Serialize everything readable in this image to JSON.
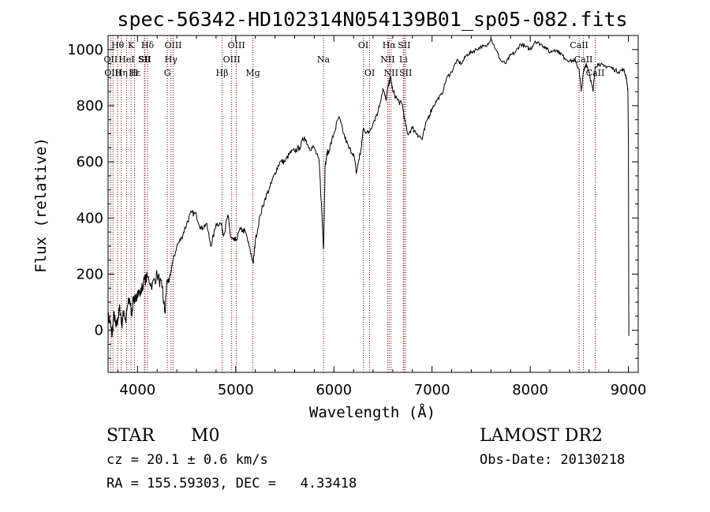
{
  "chart_data": {
    "type": "line",
    "title": "spec-56342-HD102314N054139B01_sp05-082.fits",
    "xlabel": "Wavelength (Å)",
    "ylabel": "Flux (relative)",
    "xlim": [
      3700,
      9100
    ],
    "ylim": [
      -150,
      1050
    ],
    "x_ticks": [
      4000,
      5000,
      6000,
      7000,
      8000,
      9000
    ],
    "y_ticks": [
      0,
      200,
      400,
      600,
      800,
      1000
    ],
    "grid": false,
    "line_color": "#000000",
    "marker_color": "#8b0000",
    "series": [
      {
        "x": [
          3700,
          3720,
          3740,
          3760,
          3780,
          3800,
          3820,
          3840,
          3860,
          3880,
          3900,
          3920,
          3940,
          3960,
          3980,
          4000,
          4030,
          4060,
          4100,
          4150,
          4200,
          4250,
          4280,
          4300,
          4320,
          4350,
          4400,
          4450,
          4500,
          4550,
          4600,
          4650,
          4700,
          4750,
          4800,
          4850,
          4880,
          4920,
          4950,
          4980,
          5000,
          5050,
          5100,
          5150,
          5180,
          5200,
          5250,
          5300,
          5350,
          5400,
          5450,
          5500,
          5550,
          5600,
          5650,
          5700,
          5750,
          5800,
          5850,
          5880,
          5895,
          5910,
          5930,
          5950,
          6000,
          6050,
          6100,
          6150,
          6200,
          6230,
          6250,
          6280,
          6300,
          6350,
          6400,
          6450,
          6500,
          6530,
          6560,
          6580,
          6600,
          6650,
          6700,
          6720,
          6750,
          6800,
          6850,
          6900,
          6950,
          7000,
          7050,
          7100,
          7150,
          7200,
          7250,
          7300,
          7350,
          7400,
          7450,
          7500,
          7550,
          7600,
          7650,
          7700,
          7750,
          7800,
          7850,
          7900,
          7950,
          8000,
          8050,
          8100,
          8150,
          8200,
          8250,
          8300,
          8350,
          8400,
          8450,
          8498,
          8520,
          8542,
          8570,
          8600,
          8640,
          8662,
          8700,
          8750,
          8800,
          8850,
          8900,
          8950,
          8980,
          8995,
          9000
        ],
        "y": [
          50,
          30,
          -20,
          60,
          10,
          40,
          80,
          20,
          70,
          30,
          90,
          110,
          60,
          120,
          100,
          140,
          130,
          170,
          190,
          160,
          200,
          150,
          60,
          180,
          170,
          230,
          300,
          330,
          380,
          420,
          410,
          360,
          380,
          300,
          380,
          380,
          340,
          410,
          330,
          320,
          320,
          360,
          350,
          280,
          240,
          320,
          410,
          470,
          510,
          560,
          600,
          600,
          630,
          640,
          650,
          690,
          650,
          650,
          600,
          400,
          290,
          580,
          630,
          640,
          700,
          760,
          700,
          650,
          630,
          560,
          600,
          650,
          720,
          700,
          740,
          780,
          860,
          820,
          880,
          900,
          850,
          820,
          800,
          750,
          700,
          720,
          700,
          680,
          750,
          790,
          820,
          840,
          900,
          920,
          960,
          950,
          980,
          990,
          1000,
          1010,
          1010,
          1040,
          1000,
          960,
          950,
          980,
          990,
          1020,
          1010,
          1000,
          1030,
          1020,
          1010,
          990,
          1000,
          990,
          970,
          960,
          960,
          930,
          850,
          920,
          950,
          920,
          850,
          940,
          950,
          940,
          940,
          930,
          920,
          930,
          900,
          850,
          670
        ],
        "name": ""
      }
    ],
    "lines": [
      {
        "label": "Hθ",
        "x": 3798
      },
      {
        "label": "OII",
        "x": 3727
      },
      {
        "label": "OIII",
        "x": 3750
      },
      {
        "label": "K",
        "x": 3934
      },
      {
        "label": "H",
        "x": 3969
      },
      {
        "label": "Hε",
        "x": 3970
      },
      {
        "label": "HeI",
        "x": 3889
      },
      {
        "label": "Hη",
        "x": 3835
      },
      {
        "label": "SII",
        "x": 4070
      },
      {
        "label": "Hδ",
        "x": 4102
      },
      {
        "label": "SII",
        "x": 4076
      },
      {
        "label": "OIII",
        "x": 4363
      },
      {
        "label": "Hγ",
        "x": 4341
      },
      {
        "label": "G",
        "x": 4304
      },
      {
        "label": "Hβ",
        "x": 4861
      },
      {
        "label": "OIII",
        "x": 5007
      },
      {
        "label": "OIII",
        "x": 4959
      },
      {
        "label": "Mg",
        "x": 5175
      },
      {
        "label": "Na",
        "x": 5893
      },
      {
        "label": "OI",
        "x": 6300
      },
      {
        "label": "OI",
        "x": 6364
      },
      {
        "label": "Hα",
        "x": 6563
      },
      {
        "label": "NII",
        "x": 6548
      },
      {
        "label": "NII",
        "x": 6583
      },
      {
        "label": "SII",
        "x": 6716
      },
      {
        "label": "Li",
        "x": 6708
      },
      {
        "label": "SII",
        "x": 6731
      },
      {
        "label": "CaII",
        "x": 8498
      },
      {
        "label": "CaII",
        "x": 8542
      },
      {
        "label": "CaII",
        "x": 8662
      }
    ]
  },
  "info": {
    "class": "STAR",
    "subclass": "M0",
    "survey": "LAMOST DR2",
    "cz": "cz = 20.1 ± 0.6 km/s",
    "obs_date": "Obs-Date: 20130218",
    "coords": "RA = 155.59303, DEC =   4.33418"
  }
}
